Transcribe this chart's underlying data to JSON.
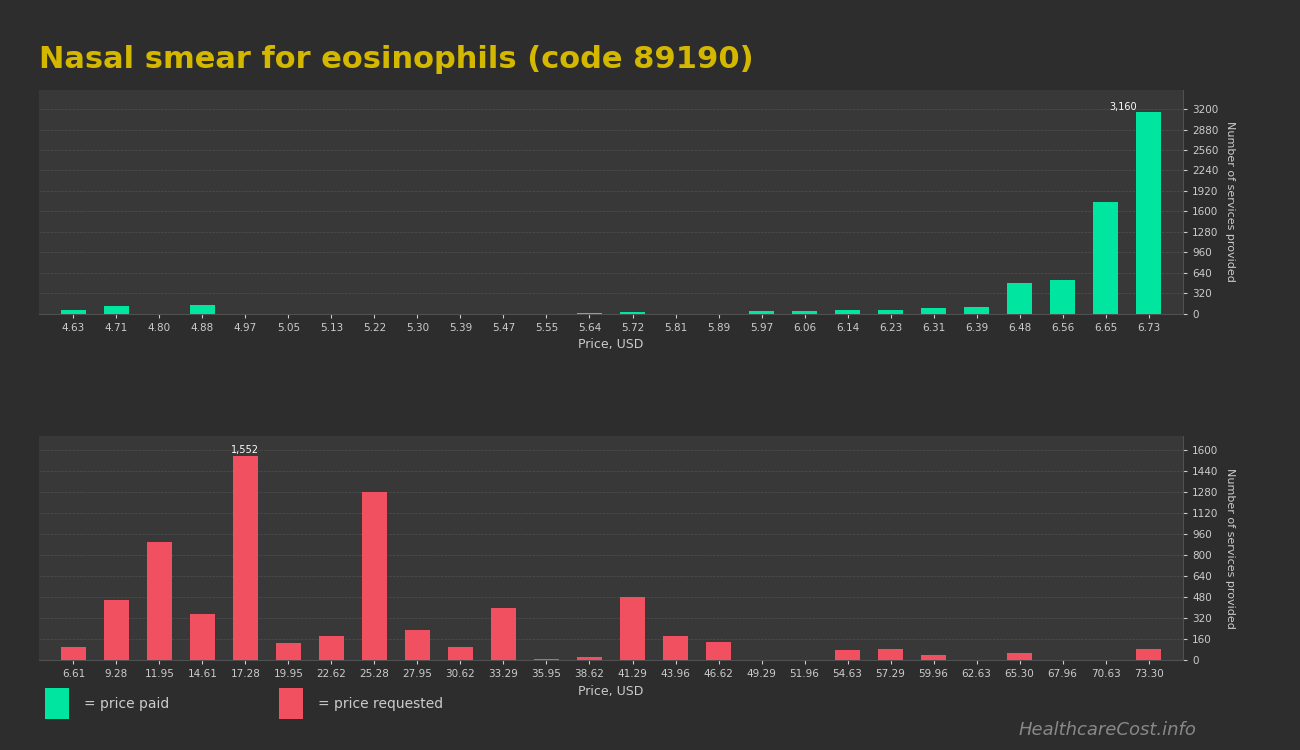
{
  "title": "Nasal smear for eosinophils (code 89190)",
  "title_color": "#d4b800",
  "background_color": "#2d2d2d",
  "plot_bg_color": "#383838",
  "grid_color": "#505050",
  "text_color": "#cccccc",
  "annotation_color": "#ffffff",
  "top_chart": {
    "xlabel": "Price, USD",
    "ylabel": "Number of services provided",
    "bar_color": "#00e5a0",
    "yticks": [
      0,
      320,
      640,
      960,
      1280,
      1600,
      1920,
      2240,
      2560,
      2880,
      3200
    ],
    "ylim": [
      0,
      3500
    ],
    "peak_label": "3,160",
    "categories": [
      "4.63",
      "4.71",
      "4.80",
      "4.88",
      "4.97",
      "5.05",
      "5.13",
      "5.22",
      "5.30",
      "5.39",
      "5.47",
      "5.55",
      "5.64",
      "5.72",
      "5.81",
      "5.89",
      "5.97",
      "6.06",
      "6.14",
      "6.23",
      "6.31",
      "6.39",
      "6.48",
      "6.56",
      "6.65",
      "6.73"
    ],
    "values": [
      50,
      120,
      0,
      130,
      0,
      0,
      0,
      0,
      0,
      0,
      0,
      0,
      15,
      18,
      0,
      0,
      40,
      45,
      60,
      60,
      80,
      110,
      480,
      530,
      1750,
      3160
    ]
  },
  "bottom_chart": {
    "xlabel": "Price, USD",
    "ylabel": "Number of services provided",
    "bar_color": "#f05060",
    "yticks": [
      0,
      160,
      320,
      480,
      640,
      800,
      960,
      1120,
      1280,
      1440,
      1600
    ],
    "ylim": [
      0,
      1700
    ],
    "peak_label": "1,552",
    "categories": [
      "6.61",
      "9.28",
      "11.95",
      "14.61",
      "17.28",
      "19.95",
      "22.62",
      "25.28",
      "27.95",
      "30.62",
      "33.29",
      "35.95",
      "38.62",
      "41.29",
      "43.96",
      "46.62",
      "49.29",
      "51.96",
      "54.63",
      "57.29",
      "59.96",
      "62.63",
      "65.30",
      "67.96",
      "70.63",
      "73.30"
    ],
    "values": [
      100,
      460,
      900,
      350,
      1552,
      130,
      180,
      1280,
      230,
      100,
      395,
      10,
      20,
      480,
      180,
      140,
      0,
      0,
      75,
      80,
      40,
      0,
      55,
      0,
      0,
      80
    ]
  },
  "legend": {
    "paid_color": "#00e5a0",
    "requested_color": "#f05060",
    "paid_label": "= price paid",
    "requested_label": "= price requested",
    "text_color": "#cccccc"
  },
  "watermark": "HealthcareCost.info",
  "watermark_color": "#888888"
}
